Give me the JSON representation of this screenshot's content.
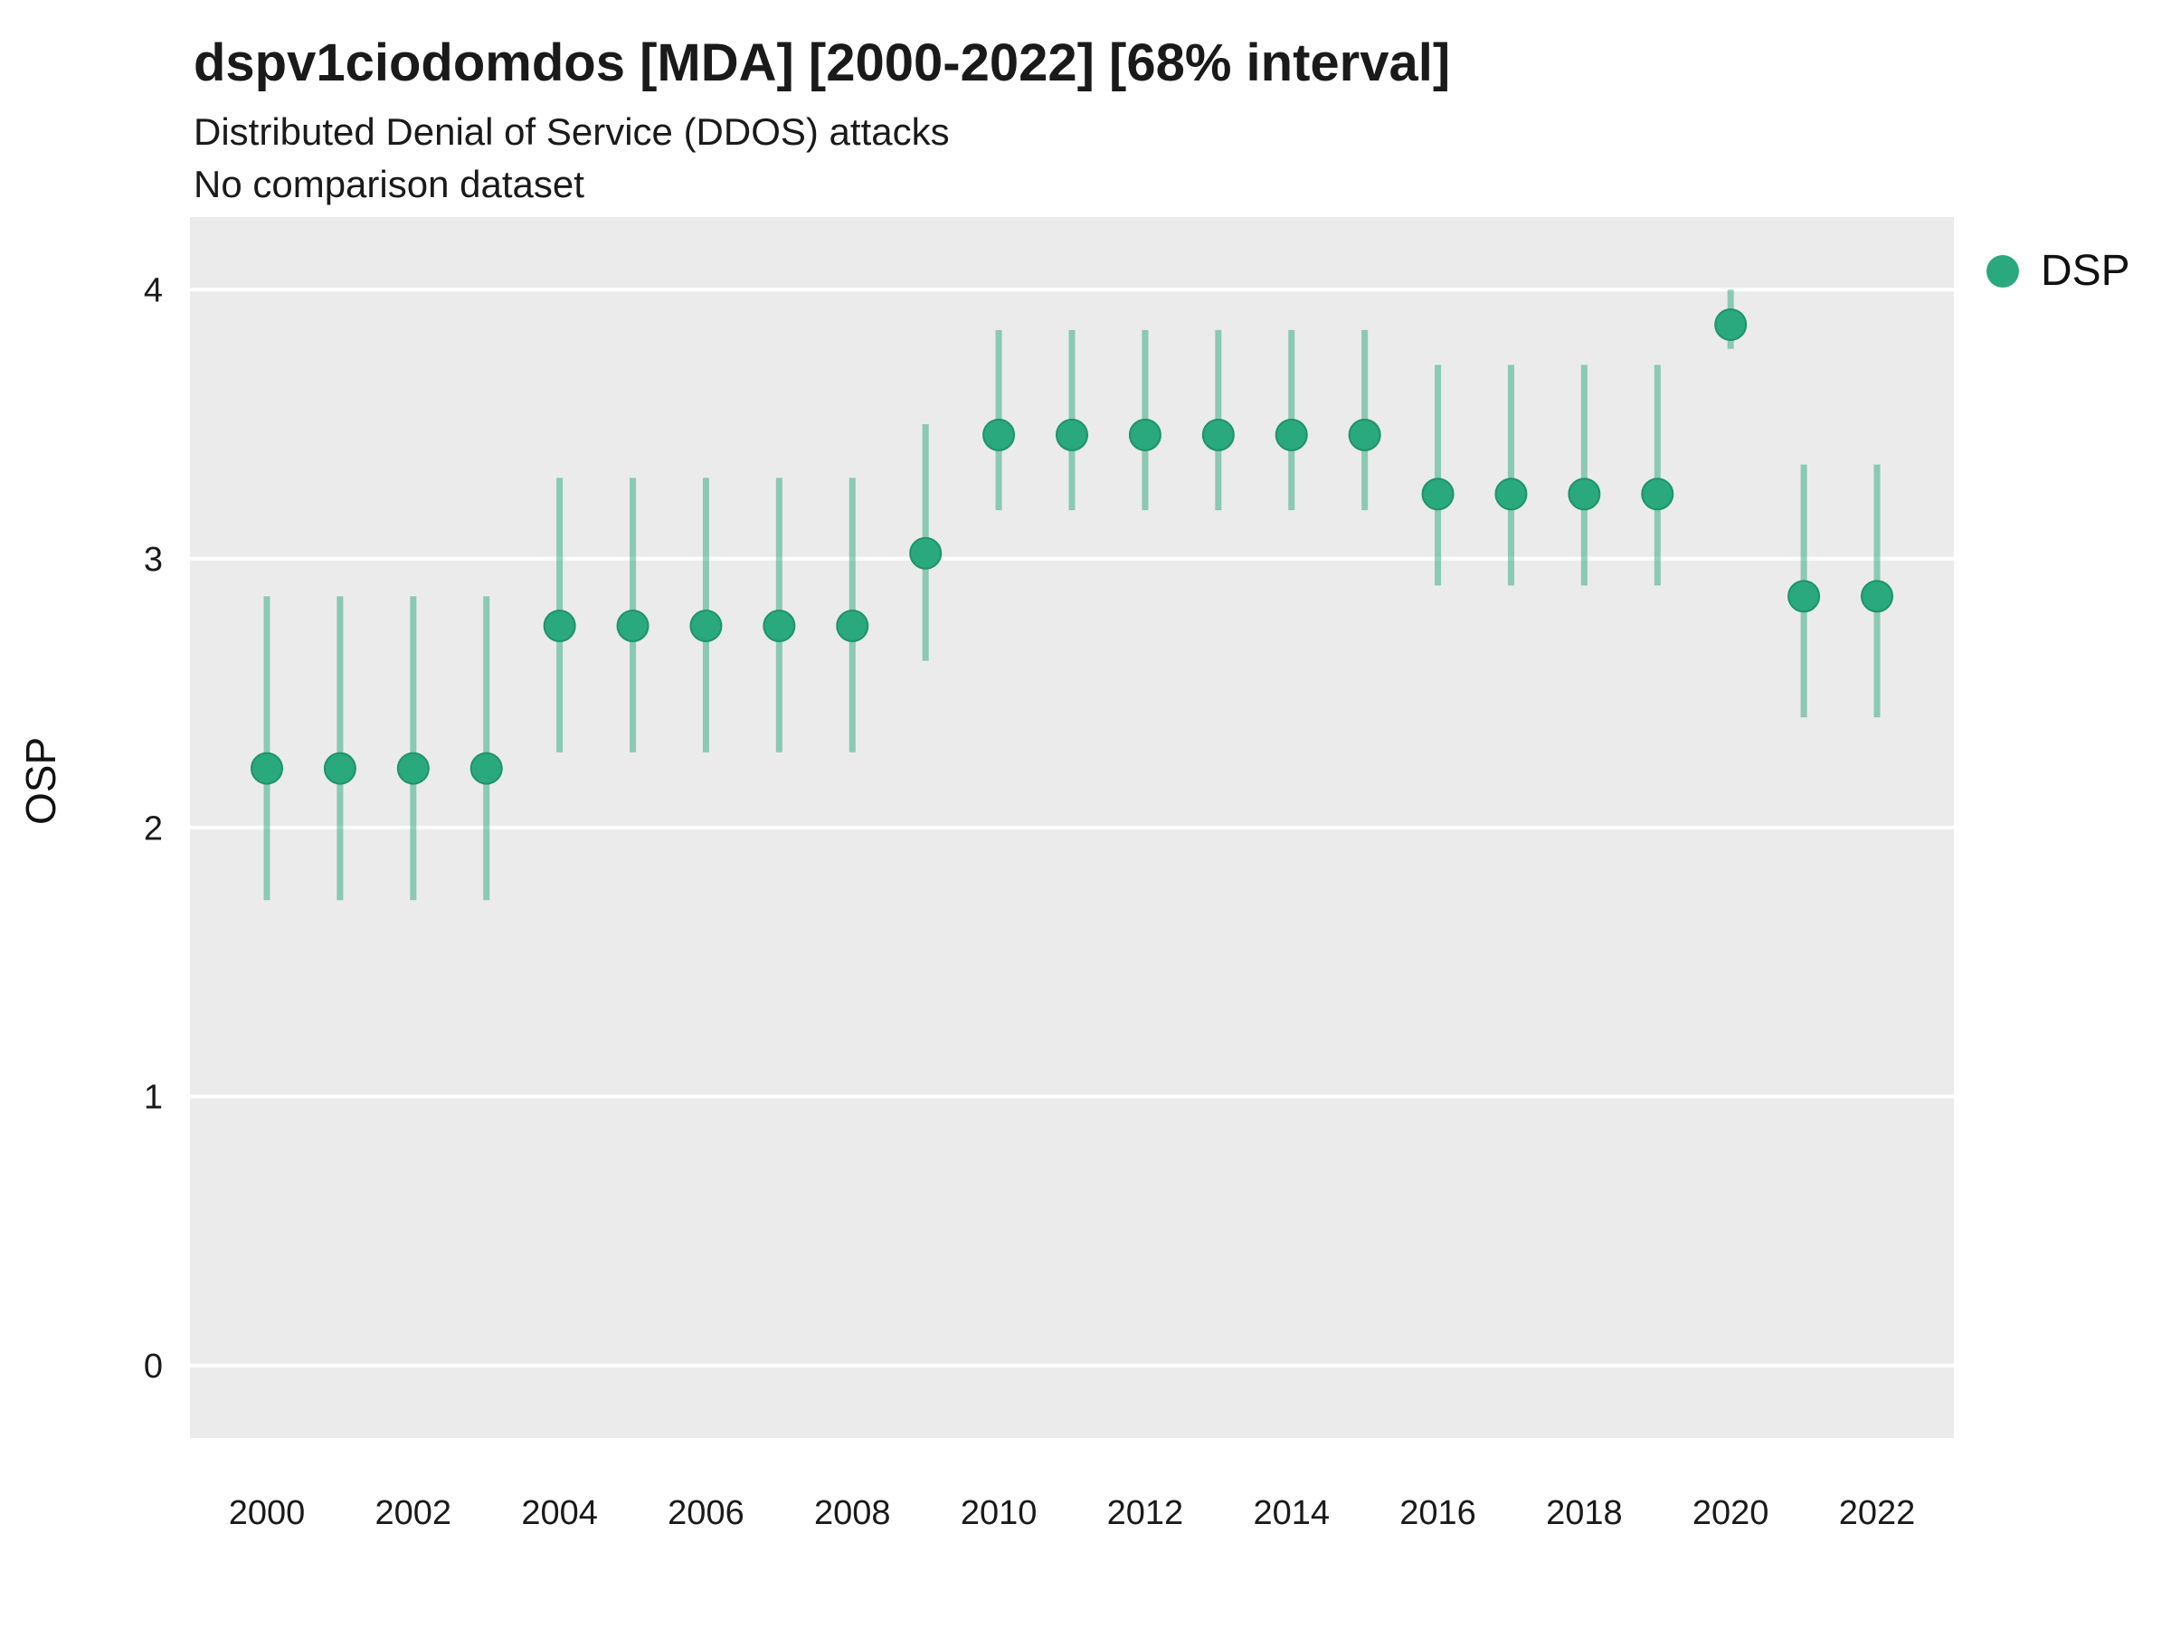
{
  "header": {
    "title": "dspv1ciodomdos [MDA] [2000-2022] [68% interval]",
    "subtitle1": "Distributed Denial of Service (DDOS) attacks",
    "subtitle2": "No comparison dataset"
  },
  "legend": {
    "label": "DSP"
  },
  "colors": {
    "point": "#2aa87e",
    "point_stroke": "#1d9468",
    "interval": "#2aa87e",
    "plot_bg": "#ebebeb",
    "grid": "#ffffff",
    "tick_text": "#1a1a1a"
  },
  "chart_data": {
    "type": "scatter",
    "title": "dspv1ciodomdos [MDA] [2000-2022] [68% interval]",
    "subtitle": "Distributed Denial of Service (DDOS) attacks",
    "note": "No comparison dataset",
    "xlabel": "",
    "ylabel": "OSP",
    "ylim": [
      -0.27,
      4.27
    ],
    "yticks": [
      0,
      1,
      2,
      3,
      4
    ],
    "xticks": [
      2000,
      2002,
      2004,
      2006,
      2008,
      2010,
      2012,
      2014,
      2016,
      2018,
      2020,
      2022
    ],
    "x": [
      2000,
      2001,
      2002,
      2003,
      2004,
      2005,
      2006,
      2007,
      2008,
      2009,
      2010,
      2011,
      2012,
      2013,
      2014,
      2015,
      2016,
      2017,
      2018,
      2019,
      2020,
      2021,
      2022
    ],
    "interval_label": "68% interval",
    "legend_position": "right",
    "grid": "major-horizontal",
    "series": [
      {
        "name": "DSP",
        "values": [
          2.22,
          2.22,
          2.22,
          2.22,
          2.75,
          2.75,
          2.75,
          2.75,
          2.75,
          3.02,
          3.46,
          3.46,
          3.46,
          3.46,
          3.46,
          3.46,
          3.24,
          3.24,
          3.24,
          3.24,
          3.87,
          2.86,
          2.86
        ],
        "lower": [
          1.73,
          1.73,
          1.73,
          1.73,
          2.28,
          2.28,
          2.28,
          2.28,
          2.28,
          2.62,
          3.18,
          3.18,
          3.18,
          3.18,
          3.18,
          3.18,
          2.9,
          2.9,
          2.9,
          2.9,
          3.78,
          2.41,
          2.41
        ],
        "upper": [
          2.86,
          2.86,
          2.86,
          2.86,
          3.3,
          3.3,
          3.3,
          3.3,
          3.3,
          3.5,
          3.85,
          3.85,
          3.85,
          3.85,
          3.85,
          3.85,
          3.72,
          3.72,
          3.72,
          3.72,
          4.0,
          3.35,
          3.35
        ]
      }
    ]
  }
}
